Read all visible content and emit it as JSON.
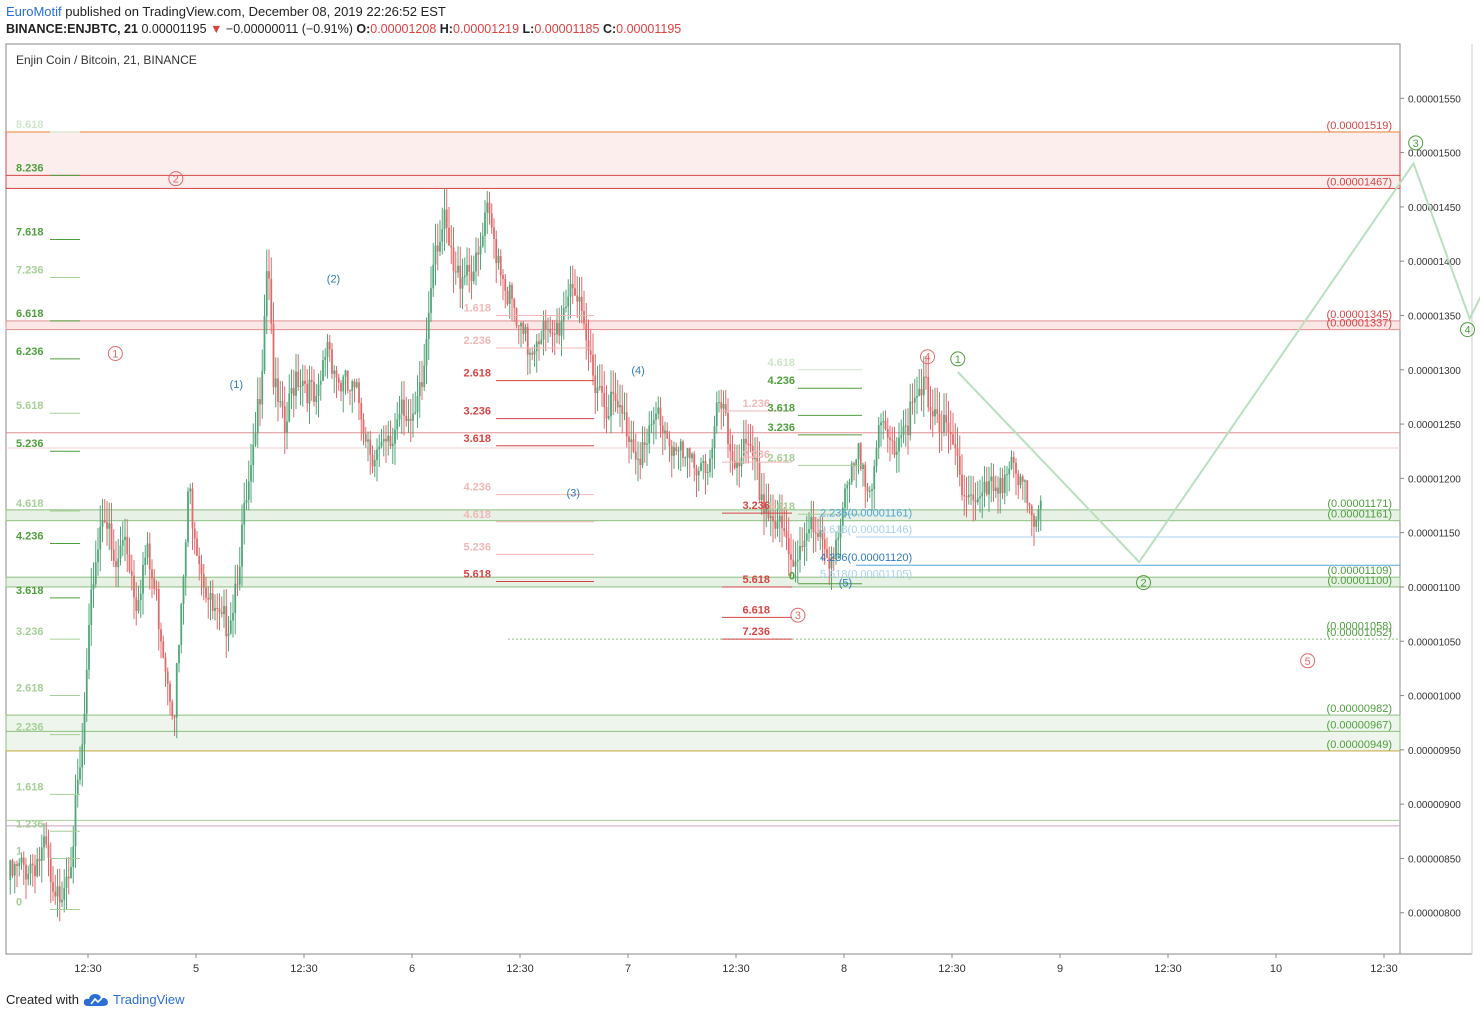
{
  "header": {
    "brand": "EuroMotif",
    "published": "published on TradingView.com, December 08, 2019 22:26:52 EST",
    "symbol": "BINANCE:ENJBTC, 21",
    "last": "0.00001195",
    "change_arrow": "▼",
    "change": "−0.00000011 (−0.91%)",
    "o_label": "O:",
    "o_value": "0.00001208",
    "h_label": "H:",
    "h_value": "0.00001219",
    "l_label": "L:",
    "l_value": "0.00001185",
    "c_label": "C:",
    "c_value": "0.00001195"
  },
  "footer": {
    "created_with": "Created with",
    "tradingview": "TradingView",
    "logo_icon": "tradingview-cloud-icon"
  },
  "colors": {
    "up": "#53a57a",
    "down": "#e06b6b",
    "fib_green": "#4f9e3e",
    "fib_red": "#d64545",
    "wave_blue": "#2f7bbf",
    "projection": "#b9e0bf"
  },
  "chart_data": {
    "type": "candlestick",
    "title": "Enjin Coin / Bitcoin, 21, BINANCE",
    "y_axis_ticks": [
      "0.00001550",
      "0.00001500",
      "0.00001450",
      "0.00001400",
      "0.00001350",
      "0.00001300",
      "0.00001250",
      "0.00001200",
      "0.00001150",
      "0.00001100",
      "0.00001050",
      "0.00001000",
      "0.00000950",
      "0.00000900",
      "0.00000850",
      "0.00000800"
    ],
    "ylim": [
      7.62e-06,
      1.6e-05
    ],
    "x_axis_ticks": [
      "12:30",
      "5",
      "12:30",
      "6",
      "12:30",
      "7",
      "12:30",
      "8",
      "12:30",
      "9",
      "12:30",
      "10",
      "12:30"
    ],
    "price_path": [
      [
        0,
        8.3e-06
      ],
      [
        2,
        8.45e-06
      ],
      [
        3.6,
        8.55e-06
      ],
      [
        4.3,
        8e-06
      ],
      [
        5,
        8.25e-06
      ],
      [
        6,
        8.6e-06
      ],
      [
        7,
        9.5e-06
      ],
      [
        8,
        1.11e-05
      ],
      [
        9,
        1.18e-05
      ],
      [
        10,
        1.11e-05
      ],
      [
        11,
        1.15e-05
      ],
      [
        12,
        1.09e-05
      ],
      [
        13,
        1.13e-05
      ],
      [
        14,
        1.085e-05
      ],
      [
        15,
        1.02e-05
      ],
      [
        15.6,
        9.9e-06
      ],
      [
        16.2,
        1.06e-05
      ],
      [
        17,
        1.19e-05
      ],
      [
        18,
        1.13e-05
      ],
      [
        19,
        1.08e-05
      ],
      [
        20,
        1.06e-05
      ],
      [
        21,
        1.08e-05
      ],
      [
        22,
        1.15e-05
      ],
      [
        23,
        1.21e-05
      ],
      [
        23.8,
        1.3e-05
      ],
      [
        24.4,
        1.42e-05
      ],
      [
        25,
        1.28e-05
      ],
      [
        26,
        1.24e-05
      ],
      [
        27,
        1.3e-05
      ],
      [
        28,
        1.29e-05
      ],
      [
        29,
        1.26e-05
      ],
      [
        30,
        1.33e-05
      ],
      [
        31,
        1.29e-05
      ],
      [
        32,
        1.28e-05
      ],
      [
        33,
        1.27e-05
      ],
      [
        34,
        1.23e-05
      ],
      [
        35,
        1.22e-05
      ],
      [
        36,
        1.23e-05
      ],
      [
        37,
        1.28e-05
      ],
      [
        38,
        1.24e-05
      ],
      [
        39,
        1.29e-05
      ],
      [
        40,
        1.42e-05
      ],
      [
        41,
        1.43e-05
      ],
      [
        42,
        1.38e-05
      ],
      [
        43,
        1.4e-05
      ],
      [
        44,
        1.39e-05
      ],
      [
        45,
        1.44e-05
      ],
      [
        46,
        1.41e-05
      ],
      [
        47,
        1.37e-05
      ],
      [
        48,
        1.33e-05
      ],
      [
        49,
        1.32e-05
      ],
      [
        50,
        1.34e-05
      ],
      [
        51,
        1.32e-05
      ],
      [
        52,
        1.35e-05
      ],
      [
        53,
        1.39e-05
      ],
      [
        54,
        1.33e-05
      ],
      [
        55,
        1.3e-05
      ],
      [
        56,
        1.275e-05
      ],
      [
        57,
        1.265e-05
      ],
      [
        58,
        1.25e-05
      ],
      [
        59,
        1.23e-05
      ],
      [
        60,
        1.225e-05
      ],
      [
        61,
        1.26e-05
      ],
      [
        62,
        1.24e-05
      ],
      [
        63,
        1.22e-05
      ],
      [
        64,
        1.21e-05
      ],
      [
        65,
        1.22e-05
      ],
      [
        66,
        1.21e-05
      ],
      [
        66.8,
        1.27e-05
      ],
      [
        67.5,
        1.24e-05
      ],
      [
        68,
        1.22e-05
      ],
      [
        69,
        1.225e-05
      ],
      [
        70,
        1.21e-05
      ],
      [
        71,
        1.18e-05
      ],
      [
        72,
        1.16e-05
      ],
      [
        73,
        1.14e-05
      ],
      [
        73.5,
        1.12e-05
      ],
      [
        74,
        1.13e-05
      ],
      [
        75,
        1.16e-05
      ],
      [
        76,
        1.14e-05
      ],
      [
        77,
        1.13e-05
      ],
      [
        78,
        1.15e-05
      ],
      [
        79,
        1.19e-05
      ],
      [
        80,
        1.22e-05
      ],
      [
        81,
        1.2e-05
      ],
      [
        82,
        1.24e-05
      ],
      [
        83,
        1.23e-05
      ],
      [
        84,
        1.25e-05
      ],
      [
        85,
        1.26e-05
      ],
      [
        86,
        1.28e-05
      ],
      [
        87,
        1.27e-05
      ],
      [
        88,
        1.24e-05
      ],
      [
        89,
        1.22e-05
      ],
      [
        90,
        1.19e-05
      ],
      [
        91,
        1.18e-05
      ],
      [
        92,
        1.185e-05
      ],
      [
        93,
        1.2e-05
      ],
      [
        94,
        1.21e-05
      ],
      [
        95,
        1.19e-05
      ],
      [
        96,
        1.18e-05
      ],
      [
        96.5,
        1.165e-05
      ],
      [
        97,
        1.195e-05
      ]
    ],
    "fib_left_labels": [
      {
        "text": "8.618",
        "price": 1.519e-05,
        "color": "#cfe5c9"
      },
      {
        "text": "8.236",
        "price": 1.479e-05,
        "color": "#4f9e3e"
      },
      {
        "text": "7.618",
        "price": 1.42e-05,
        "color": "#4f9e3e"
      },
      {
        "text": "7.236",
        "price": 1.385e-05,
        "color": "#a6cf98"
      },
      {
        "text": "6.618",
        "price": 1.345e-05,
        "color": "#4f9e3e"
      },
      {
        "text": "6.236",
        "price": 1.31e-05,
        "color": "#4f9e3e"
      },
      {
        "text": "5.618",
        "price": 1.26e-05,
        "color": "#a6cf98"
      },
      {
        "text": "5.236",
        "price": 1.225e-05,
        "color": "#4f9e3e"
      },
      {
        "text": "4.618",
        "price": 1.17e-05,
        "color": "#a6cf98"
      },
      {
        "text": "4.236",
        "price": 1.14e-05,
        "color": "#4f9e3e"
      },
      {
        "text": "3.618",
        "price": 1.09e-05,
        "color": "#4f9e3e"
      },
      {
        "text": "3.236",
        "price": 1.052e-05,
        "color": "#a6cf98"
      },
      {
        "text": "2.618",
        "price": 1e-05,
        "color": "#a6cf98"
      },
      {
        "text": "2.236",
        "price": 9.64e-06,
        "color": "#a6cf98"
      },
      {
        "text": "1.618",
        "price": 9.09e-06,
        "color": "#a6cf98"
      },
      {
        "text": "1.236",
        "price": 8.75e-06,
        "color": "#a6cf98"
      },
      {
        "text": "1",
        "price": 8.5e-06,
        "color": "#a6cf98"
      },
      {
        "text": "0",
        "price": 8.03e-06,
        "color": "#a6cf98"
      }
    ],
    "fib_mid_red": [
      {
        "text": "1.618",
        "price": 1.35e-05,
        "color": "#f2b8b8"
      },
      {
        "text": "2.236",
        "price": 1.32e-05,
        "color": "#f2b8b8"
      },
      {
        "text": "2.618",
        "price": 1.29e-05,
        "color": "#d64545"
      },
      {
        "text": "3.236",
        "price": 1.255e-05,
        "color": "#d64545"
      },
      {
        "text": "3.618",
        "price": 1.23e-05,
        "color": "#d64545"
      },
      {
        "text": "4.236",
        "price": 1.185e-05,
        "color": "#f2b8b8"
      },
      {
        "text": "4.618",
        "price": 1.16e-05,
        "color": "#f2b8b8"
      },
      {
        "text": "5.236",
        "price": 1.13e-05,
        "color": "#f2b8b8"
      },
      {
        "text": "5.618",
        "price": 1.105e-05,
        "color": "#d64545"
      }
    ],
    "fib_right_red": [
      {
        "text": "1.236",
        "price": 1.262e-05,
        "color": "#f2b8b8"
      },
      {
        "text": "2.236",
        "price": 1.215e-05,
        "color": "#f2b8b8"
      },
      {
        "text": "3.236",
        "price": 1.168e-05,
        "color": "#d64545"
      },
      {
        "text": "5.618",
        "price": 1.1e-05,
        "color": "#d64545"
      },
      {
        "text": "6.618",
        "price": 1.072e-05,
        "color": "#d64545"
      },
      {
        "text": "7.236",
        "price": 1.052e-05,
        "color": "#d64545"
      }
    ],
    "fib_right_green": [
      {
        "text": "4.618",
        "price": 1.3e-05,
        "color": "#cfe5c9"
      },
      {
        "text": "4.236",
        "price": 1.283e-05,
        "color": "#4f9e3e"
      },
      {
        "text": "3.618",
        "price": 1.258e-05,
        "color": "#4f9e3e"
      },
      {
        "text": "3.236",
        "price": 1.24e-05,
        "color": "#4f9e3e"
      },
      {
        "text": "2.618",
        "price": 1.212e-05,
        "color": "#a6cf98"
      },
      {
        "text": "1.618",
        "price": 1.167e-05,
        "color": "#a6cf98"
      },
      {
        "text": "0",
        "price": 1.103e-05,
        "color": "#4f9e3e"
      }
    ],
    "fib_blue": [
      {
        "text": "2.236(0.00001161)",
        "price": 1.161e-05,
        "color": "#4fa3dd"
      },
      {
        "text": "3.618(0.00001146)",
        "price": 1.146e-05,
        "color": "#a8d2ef"
      },
      {
        "text": "4.236(0.00001120)",
        "price": 1.12e-05,
        "color": "#2f7bbf"
      },
      {
        "text": "5.618(0.00001105)",
        "price": 1.105e-05,
        "color": "#a8d2ef"
      }
    ],
    "price_levels": [
      {
        "text": "(0.00001519)",
        "price": 1.519e-05,
        "color": "#d64545"
      },
      {
        "text": "(0.00001467)",
        "price": 1.467e-05,
        "color": "#d64545"
      },
      {
        "text": "(0.00001345)",
        "price": 1.345e-05,
        "color": "#d64545"
      },
      {
        "text": "(0.00001337)",
        "price": 1.337e-05,
        "color": "#d64545"
      },
      {
        "text": "(0.00001171)",
        "price": 1.171e-05,
        "color": "#4f9e3e"
      },
      {
        "text": "(0.00001161)",
        "price": 1.161e-05,
        "color": "#4f9e3e"
      },
      {
        "text": "(0.00001109)",
        "price": 1.109e-05,
        "color": "#4f9e3e"
      },
      {
        "text": "(0.00001100)",
        "price": 1.1e-05,
        "color": "#4f9e3e"
      },
      {
        "text": "(0.00001058)",
        "price": 1.058e-05,
        "color": "#4f9e3e"
      },
      {
        "text": "(0.00001052)",
        "price": 1.052e-05,
        "color": "#4f9e3e"
      },
      {
        "text": "(0.00000982)",
        "price": 9.82e-06,
        "color": "#4f9e3e"
      },
      {
        "text": "(0.00000967)",
        "price": 9.67e-06,
        "color": "#4f9e3e"
      },
      {
        "text": "(0.00000949)",
        "price": 9.49e-06,
        "color": "#4f9e3e"
      }
    ],
    "wave_labels": [
      {
        "text": "2",
        "style": "circle",
        "color": "#e06b6b",
        "x_day": 4.74,
        "price": 1.476e-05
      },
      {
        "text": "1",
        "style": "circle",
        "color": "#e06b6b",
        "x_day": 4.46,
        "price": 1.315e-05
      },
      {
        "text": "3",
        "style": "circle",
        "color": "#e06b6b",
        "x_day": 7.62,
        "price": 1.074e-05
      },
      {
        "text": "4",
        "style": "circle",
        "color": "#e06b6b",
        "x_day": 8.22,
        "price": 1.312e-05
      },
      {
        "text": "5",
        "style": "circle",
        "color": "#e06b6b",
        "x_day": 9.98,
        "price": 1.032e-05
      },
      {
        "text": "(1)",
        "style": "plain",
        "color": "#2f7bbf",
        "x_day": 5.02,
        "price": 1.287e-05
      },
      {
        "text": "(2)",
        "style": "plain",
        "color": "#2f7bbf",
        "x_day": 5.47,
        "price": 1.384e-05
      },
      {
        "text": "(3)",
        "style": "plain",
        "color": "#2f7bbf",
        "x_day": 6.58,
        "price": 1.187e-05
      },
      {
        "text": "(4)",
        "style": "plain",
        "color": "#2f7bbf",
        "x_day": 6.88,
        "price": 1.3e-05
      },
      {
        "text": "(5)",
        "style": "plain",
        "color": "#2f7bbf",
        "x_day": 7.84,
        "price": 1.104e-05
      },
      {
        "text": "1",
        "style": "circle",
        "color": "#4f9e3e",
        "x_day": 8.36,
        "price": 1.31e-05
      },
      {
        "text": "2",
        "style": "circle",
        "color": "#4f9e3e",
        "x_day": 9.22,
        "price": 1.104e-05
      },
      {
        "text": "3",
        "style": "circle",
        "color": "#4f9e3e",
        "x_day": 10.48,
        "price": 1.509e-05
      },
      {
        "text": "4",
        "style": "circle",
        "color": "#4f9e3e",
        "x_day": 10.72,
        "price": 1.337e-05
      }
    ],
    "projection_path": [
      [
        8.36,
        1.298e-05
      ],
      [
        9.2,
        1.123e-05
      ],
      [
        10.47,
        1.49e-05
      ],
      [
        10.73,
        1.347e-05
      ],
      [
        11.16,
        1.519e-05
      ]
    ]
  }
}
